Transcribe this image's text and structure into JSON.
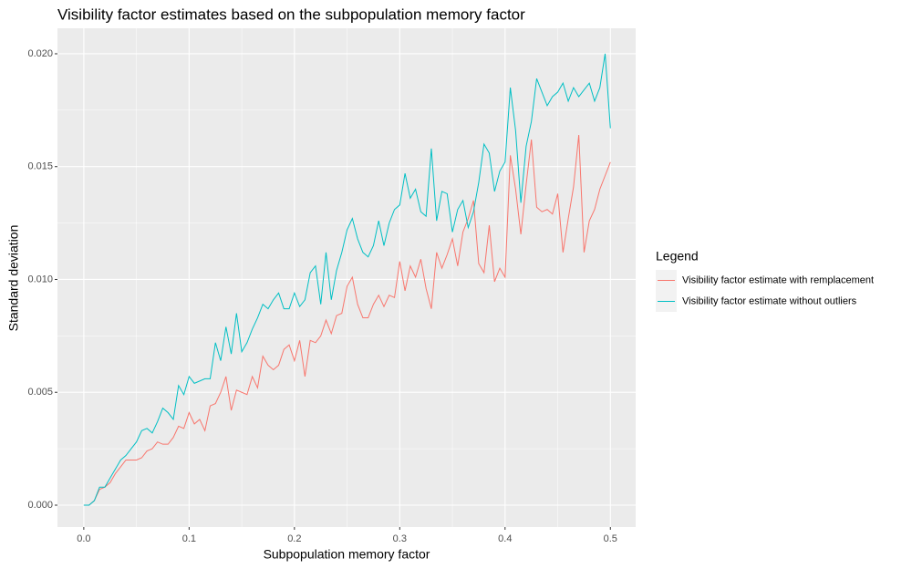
{
  "chart_data": {
    "type": "line",
    "title": "Visibility factor estimates based on the subpopulation memory factor",
    "x_label": "Subpopulation memory factor",
    "y_label": "Standard deviation",
    "legend_title": "Legend",
    "legend_position": "right",
    "grid": true,
    "xlim": [
      -0.025,
      0.524
    ],
    "ylim": [
      -0.00097,
      0.02113
    ],
    "xticks": [
      {
        "value": 0,
        "label": "0.0"
      },
      {
        "value": 0.1,
        "label": "0.1"
      },
      {
        "value": 0.2,
        "label": "0.2"
      },
      {
        "value": 0.3,
        "label": "0.3"
      },
      {
        "value": 0.4,
        "label": "0.4"
      },
      {
        "value": 0.5,
        "label": "0.5"
      }
    ],
    "yticks": [
      {
        "value": 0,
        "label": "0.000"
      },
      {
        "value": 0.005,
        "label": "0.005"
      },
      {
        "value": 0.01,
        "label": "0.010"
      },
      {
        "value": 0.015,
        "label": "0.015"
      },
      {
        "value": 0.02,
        "label": "0.020"
      }
    ],
    "x": [
      0,
      0.005,
      0.01,
      0.015,
      0.02,
      0.025,
      0.03,
      0.035,
      0.04,
      0.045,
      0.05,
      0.055,
      0.06,
      0.065,
      0.07,
      0.075,
      0.08,
      0.085,
      0.09,
      0.095,
      0.1,
      0.105,
      0.11,
      0.115,
      0.12,
      0.125,
      0.13,
      0.135,
      0.14,
      0.145,
      0.15,
      0.155,
      0.16,
      0.165,
      0.17,
      0.175,
      0.18,
      0.185,
      0.19,
      0.195,
      0.2,
      0.205,
      0.21,
      0.215,
      0.22,
      0.225,
      0.23,
      0.235,
      0.24,
      0.245,
      0.25,
      0.255,
      0.26,
      0.265,
      0.27,
      0.275,
      0.28,
      0.285,
      0.29,
      0.295,
      0.3,
      0.305,
      0.31,
      0.315,
      0.32,
      0.325,
      0.33,
      0.335,
      0.34,
      0.345,
      0.35,
      0.355,
      0.36,
      0.365,
      0.37,
      0.375,
      0.38,
      0.385,
      0.39,
      0.395,
      0.4,
      0.405,
      0.41,
      0.415,
      0.42,
      0.425,
      0.43,
      0.435,
      0.44,
      0.445,
      0.45,
      0.455,
      0.46,
      0.465,
      0.47,
      0.475,
      0.48,
      0.485,
      0.49,
      0.495,
      0.5
    ],
    "series": [
      {
        "name": "Visibility factor estimate with remplacement",
        "color": "#F8766D",
        "values": [
          0,
          0,
          0.0002,
          0.0007,
          0.0008,
          0.001,
          0.0014,
          0.0017,
          0.002,
          0.002,
          0.002,
          0.0021,
          0.0024,
          0.0025,
          0.0028,
          0.0027,
          0.0027,
          0.003,
          0.0035,
          0.0034,
          0.0041,
          0.0036,
          0.0038,
          0.0033,
          0.0044,
          0.0045,
          0.005,
          0.0057,
          0.0042,
          0.0051,
          0.005,
          0.0049,
          0.0057,
          0.0052,
          0.0066,
          0.0062,
          0.006,
          0.0062,
          0.0069,
          0.0071,
          0.0064,
          0.0073,
          0.0057,
          0.0073,
          0.0072,
          0.0075,
          0.0082,
          0.0076,
          0.0084,
          0.0085,
          0.0097,
          0.0101,
          0.0089,
          0.0083,
          0.0083,
          0.0089,
          0.0093,
          0.0088,
          0.0093,
          0.0092,
          0.0108,
          0.0095,
          0.0106,
          0.0101,
          0.0109,
          0.0096,
          0.0087,
          0.0112,
          0.0105,
          0.0111,
          0.0118,
          0.0106,
          0.0121,
          0.0127,
          0.0135,
          0.0107,
          0.0103,
          0.0124,
          0.0099,
          0.0105,
          0.0101,
          0.0155,
          0.014,
          0.012,
          0.0142,
          0.0162,
          0.0132,
          0.013,
          0.0131,
          0.0129,
          0.0138,
          0.0112,
          0.0127,
          0.0141,
          0.0164,
          0.0112,
          0.0126,
          0.0131,
          0.014,
          0.0146,
          0.0152
        ]
      },
      {
        "name": "Visibility factor estimate without outliers",
        "color": "#00BFC4",
        "values": [
          0,
          0,
          0.0002,
          0.0008,
          0.0008,
          0.0012,
          0.0016,
          0.002,
          0.0022,
          0.0025,
          0.0028,
          0.0033,
          0.0034,
          0.0032,
          0.0037,
          0.0043,
          0.0041,
          0.0038,
          0.0053,
          0.0049,
          0.0057,
          0.0054,
          0.0055,
          0.0056,
          0.0056,
          0.0072,
          0.0064,
          0.0079,
          0.0067,
          0.0085,
          0.0068,
          0.0072,
          0.0078,
          0.0083,
          0.0089,
          0.0087,
          0.0091,
          0.0094,
          0.0087,
          0.0087,
          0.0094,
          0.0088,
          0.0091,
          0.0103,
          0.0106,
          0.0089,
          0.0112,
          0.0091,
          0.0104,
          0.0112,
          0.0122,
          0.0127,
          0.0118,
          0.0112,
          0.011,
          0.0115,
          0.0126,
          0.0115,
          0.0125,
          0.0131,
          0.0133,
          0.0147,
          0.0136,
          0.014,
          0.013,
          0.0128,
          0.0158,
          0.0126,
          0.0139,
          0.0138,
          0.0121,
          0.0131,
          0.0135,
          0.0123,
          0.013,
          0.0143,
          0.016,
          0.0156,
          0.0139,
          0.0148,
          0.0152,
          0.0185,
          0.0166,
          0.0134,
          0.0159,
          0.017,
          0.0189,
          0.0183,
          0.0177,
          0.0181,
          0.0183,
          0.0187,
          0.0179,
          0.0185,
          0.0181,
          0.0184,
          0.0187,
          0.0179,
          0.0185,
          0.02,
          0.0167
        ]
      }
    ]
  }
}
